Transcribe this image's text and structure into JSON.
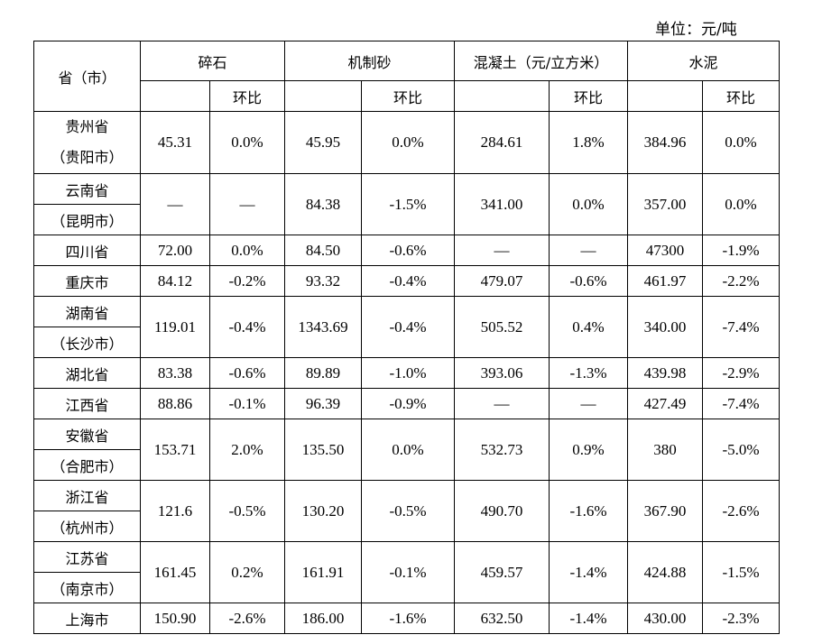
{
  "unit_label": "单位：元/吨",
  "header": {
    "region": "省（市）",
    "groups": [
      "碎石",
      "机制砂",
      "混凝土（元/立方米）",
      "水泥"
    ],
    "sub": "环比"
  },
  "rows": [
    {
      "name": [
        "贵州省",
        "（贵阳市）"
      ],
      "split": false,
      "values": [
        "45.31",
        "0.0%",
        "45.95",
        "0.0%",
        "284.61",
        "1.8%",
        "384.96",
        "0.0%"
      ]
    },
    {
      "name": [
        "云南省",
        "（昆明市）"
      ],
      "split": true,
      "values": [
        "—",
        "—",
        "84.38",
        "-1.5%",
        "341.00",
        "0.0%",
        "357.00",
        "0.0%"
      ]
    },
    {
      "name": [
        "四川省"
      ],
      "values": [
        "72.00",
        "0.0%",
        "84.50",
        "-0.6%",
        "—",
        "—",
        "47300",
        "-1.9%"
      ]
    },
    {
      "name": [
        "重庆市"
      ],
      "values": [
        "84.12",
        "-0.2%",
        "93.32",
        "-0.4%",
        "479.07",
        "-0.6%",
        "461.97",
        "-2.2%"
      ]
    },
    {
      "name": [
        "湖南省",
        "（长沙市）"
      ],
      "split": true,
      "values": [
        "119.01",
        "-0.4%",
        "1343.69",
        "-0.4%",
        "505.52",
        "0.4%",
        "340.00",
        "-7.4%"
      ]
    },
    {
      "name": [
        "湖北省"
      ],
      "values": [
        "83.38",
        "-0.6%",
        "89.89",
        "-1.0%",
        "393.06",
        "-1.3%",
        "439.98",
        "-2.9%"
      ]
    },
    {
      "name": [
        "江西省"
      ],
      "values": [
        "88.86",
        "-0.1%",
        "96.39",
        "-0.9%",
        "—",
        "—",
        "427.49",
        "-7.4%"
      ]
    },
    {
      "name": [
        "安徽省",
        "（合肥市）"
      ],
      "split": true,
      "values": [
        "153.71",
        "2.0%",
        "135.50",
        "0.0%",
        "532.73",
        "0.9%",
        "380",
        "-5.0%"
      ]
    },
    {
      "name": [
        "浙江省",
        "（杭州市）"
      ],
      "split": true,
      "values": [
        "121.6",
        "-0.5%",
        "130.20",
        "-0.5%",
        "490.70",
        "-1.6%",
        "367.90",
        "-2.6%"
      ]
    },
    {
      "name": [
        "江苏省",
        "（南京市）"
      ],
      "split": true,
      "values": [
        "161.45",
        "0.2%",
        "161.91",
        "-0.1%",
        "459.57",
        "-1.4%",
        "424.88",
        "-1.5%"
      ]
    },
    {
      "name": [
        "上海市"
      ],
      "values": [
        "150.90",
        "-2.6%",
        "186.00",
        "-1.6%",
        "632.50",
        "-1.4%",
        "430.00",
        "-2.3%"
      ]
    }
  ]
}
